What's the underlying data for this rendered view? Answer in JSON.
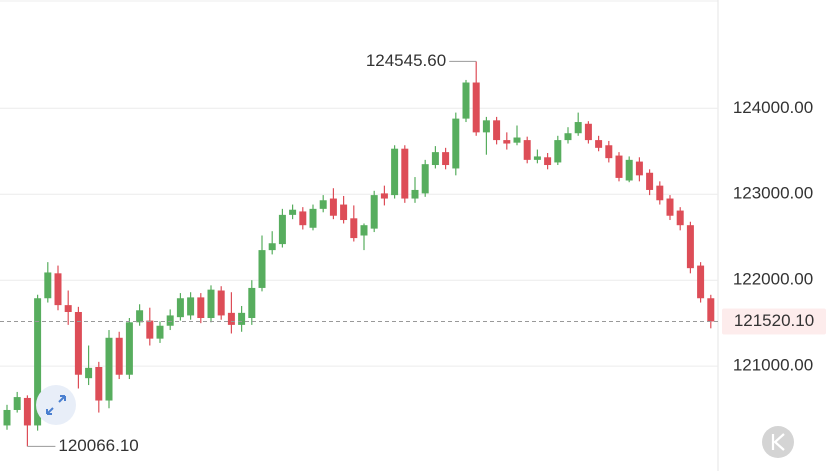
{
  "chart_data": {
    "type": "candlestick",
    "open": [
      120310,
      120490,
      120630,
      120310,
      121790,
      122080,
      121710,
      121630,
      120860,
      120990,
      120600,
      121330,
      120900,
      121510,
      121530,
      121320,
      121470,
      121570,
      121590,
      121800,
      121560,
      121880,
      121620,
      121480,
      121560,
      121910,
      122350,
      122420,
      122760,
      122800,
      122610,
      122830,
      122950,
      122880,
      122720,
      122520,
      122600,
      123010,
      122990,
      123530,
      122950,
      123010,
      123340,
      123490,
      123300,
      123880,
      124300,
      123720,
      123860,
      123630,
      123600,
      123630,
      123400,
      123430,
      123370,
      123630,
      123710,
      123820,
      123630,
      123570,
      123450,
      123160,
      123380,
      123250,
      123100,
      122950,
      122810,
      122640,
      122170,
      121790
    ],
    "high": [
      120550,
      120700,
      120660,
      121830,
      122210,
      122170,
      121880,
      121690,
      121240,
      121050,
      121420,
      121400,
      121560,
      121720,
      121680,
      121520,
      121660,
      121850,
      121860,
      121850,
      121940,
      121930,
      121860,
      121700,
      122000,
      122520,
      122570,
      122830,
      122880,
      122850,
      122880,
      122990,
      123070,
      122980,
      122870,
      122660,
      123040,
      123100,
      123570,
      123570,
      123200,
      123400,
      123560,
      123540,
      123950,
      124330,
      124545.6,
      123900,
      123900,
      123720,
      123800,
      123670,
      123520,
      123480,
      123680,
      123780,
      123950,
      123850,
      123680,
      123620,
      123490,
      123440,
      123430,
      123290,
      123150,
      122990,
      122850,
      122680,
      122210,
      121830
    ],
    "low": [
      120260,
      120460,
      120066.1,
      120250,
      121740,
      121650,
      121480,
      120740,
      120780,
      120460,
      120510,
      120850,
      120850,
      121470,
      121240,
      121270,
      121420,
      121530,
      121540,
      121500,
      121510,
      121540,
      121380,
      121400,
      121480,
      121870,
      122300,
      122380,
      122710,
      122590,
      122580,
      122790,
      122710,
      122660,
      122450,
      122350,
      122560,
      122870,
      122950,
      122900,
      122900,
      122970,
      123300,
      123290,
      123220,
      123840,
      123680,
      123460,
      123580,
      123520,
      123570,
      123360,
      123360,
      123290,
      123340,
      123590,
      123680,
      123590,
      123500,
      123370,
      123150,
      123140,
      123150,
      122990,
      122880,
      122700,
      122580,
      122080,
      121740,
      121440
    ],
    "close": [
      120490,
      120640,
      120310,
      121790,
      122090,
      121710,
      121630,
      120900,
      120980,
      120600,
      121330,
      120900,
      121510,
      121650,
      121320,
      121470,
      121590,
      121790,
      121800,
      121560,
      121890,
      121590,
      121480,
      121620,
      121910,
      122350,
      122430,
      122760,
      122820,
      122640,
      122830,
      122930,
      122750,
      122700,
      122490,
      122640,
      122990,
      122950,
      123530,
      122950,
      123050,
      123350,
      123490,
      123340,
      123880,
      124300,
      123720,
      123860,
      123630,
      123590,
      123660,
      123400,
      123440,
      123340,
      123630,
      123710,
      123840,
      123630,
      123540,
      123420,
      123190,
      123400,
      123220,
      123050,
      122930,
      122750,
      122640,
      122140,
      121790,
      121520.1
    ],
    "up_color": "#57ad5e",
    "down_color": "#dd4d57",
    "ylim": [
      119780,
      125260
    ],
    "yticks": [
      {
        "value": 121000,
        "label": "121000.00"
      },
      {
        "value": 122000,
        "label": "122000.00"
      },
      {
        "value": 123000,
        "label": "123000.00"
      },
      {
        "value": 124000,
        "label": "124000.00"
      }
    ],
    "grid": true,
    "high_marker": {
      "value": 124545.6,
      "label": "124545.60"
    },
    "low_marker": {
      "value": 120066.1,
      "label": "120066.10"
    },
    "last_price": {
      "value": 121520.1,
      "label": "121520.10"
    }
  }
}
